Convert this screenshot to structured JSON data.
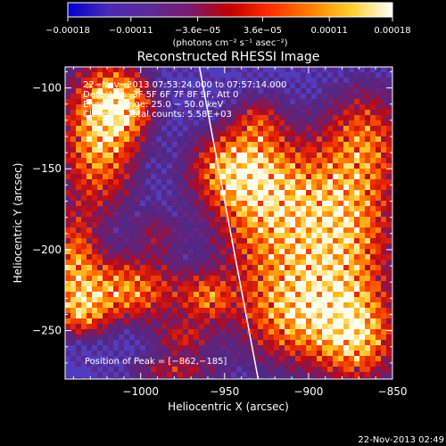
{
  "chart_data": {
    "type": "heatmap",
    "title": "Reconstructed RHESSI Image",
    "xlabel": "Heliocentric X (arcsec)",
    "ylabel": "Heliocentric Y (arcsec)",
    "xlim": [
      -1045,
      -850
    ],
    "ylim": [
      -280,
      -87
    ],
    "xticks": [
      -1000,
      -950,
      -900,
      -850
    ],
    "xtick_labels": [
      "−1000",
      "−950",
      "−900",
      "−850"
    ],
    "yticks": [
      -100,
      -150,
      -200,
      -250
    ],
    "ytick_labels": [
      "−100",
      "−150",
      "−200",
      "−250"
    ],
    "colorbar": {
      "range": [
        -0.00018,
        0.00018
      ],
      "tick_values": [
        -0.00018,
        -0.00011,
        -3.6e-05,
        3.6e-05,
        0.00011,
        0.00018
      ],
      "tick_labels": [
        "−0.00018",
        "−0.00011",
        "−3.6e−05",
        "3.6e−05",
        "0.00011",
        "0.00018"
      ],
      "unit_label": "(photons cm⁻² s⁻¹ asec⁻²)",
      "colors": [
        "#0000d0",
        "#4a2ab0",
        "#5a2a98",
        "#7a1a70",
        "#c00000",
        "#ff3000",
        "#ff8000",
        "#ffd030",
        "#ffffff"
      ]
    },
    "annotations": [
      "22−Nov−2013 07:53:24.000 to 07:57:14.000",
      "Detectors: 3F 5F 6F 7F 8F 9F, Att 0",
      "Energy Range: 25.0 − 50.0 keV",
      "Clean       Total counts: 5.58E+03"
    ],
    "peak_label": "Position of Peak = [−862,−185]",
    "peak": [
      -862,
      -185
    ],
    "limb_line": [
      [
        -965,
        -87
      ],
      [
        -930,
        -280
      ]
    ],
    "blobs": [
      {
        "x": -1025,
        "y": -130,
        "w": 1.0,
        "sx": 16,
        "sy": 32
      },
      {
        "x": -1010,
        "y": -110,
        "w": 0.8,
        "sx": 12,
        "sy": 14
      },
      {
        "x": -925,
        "y": -175,
        "w": 0.9,
        "sx": 22,
        "sy": 32
      },
      {
        "x": -945,
        "y": -150,
        "w": 0.8,
        "sx": 18,
        "sy": 16
      },
      {
        "x": -880,
        "y": -185,
        "w": 1.0,
        "sx": 22,
        "sy": 35
      },
      {
        "x": -865,
        "y": -130,
        "w": 0.6,
        "sx": 16,
        "sy": 22
      },
      {
        "x": -905,
        "y": -240,
        "w": 0.9,
        "sx": 26,
        "sy": 22
      },
      {
        "x": -870,
        "y": -255,
        "w": 0.8,
        "sx": 16,
        "sy": 20
      },
      {
        "x": -1010,
        "y": -225,
        "w": 0.9,
        "sx": 25,
        "sy": 14
      },
      {
        "x": -1040,
        "y": -205,
        "w": 0.7,
        "sx": 10,
        "sy": 20
      },
      {
        "x": -1035,
        "y": -240,
        "w": 0.6,
        "sx": 10,
        "sy": 10
      },
      {
        "x": -960,
        "y": -230,
        "w": 0.6,
        "sx": 10,
        "sy": 10
      },
      {
        "x": -975,
        "y": -255,
        "w": 0.5,
        "sx": 12,
        "sy": 8
      },
      {
        "x": -980,
        "y": -275,
        "w": 0.5,
        "sx": 18,
        "sy": 6
      },
      {
        "x": -930,
        "y": -120,
        "w": 0.4,
        "sx": 10,
        "sy": 10
      },
      {
        "x": -990,
        "y": -190,
        "w": 0.35,
        "sx": 10,
        "sy": 10
      }
    ]
  },
  "footer": {
    "timestamp": "22-Nov-2013 02:49"
  }
}
